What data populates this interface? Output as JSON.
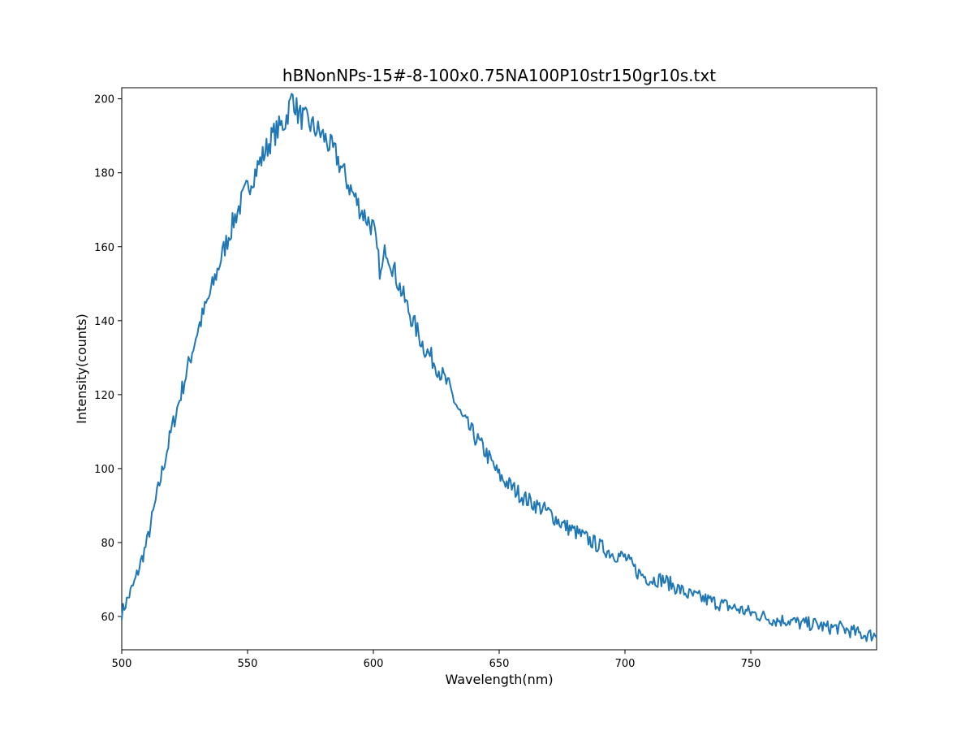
{
  "chart_data": {
    "type": "line",
    "title": "hBNonNPs-15#-8-100x0.75NA100P10str150gr10s.txt",
    "xlabel": "Wavelength(nm)",
    "ylabel": "Intensity(counts)",
    "xlim": [
      500,
      800
    ],
    "ylim": [
      51,
      203
    ],
    "xticks": [
      500,
      550,
      600,
      650,
      700,
      750
    ],
    "yticks": [
      60,
      80,
      100,
      120,
      140,
      160,
      180,
      200
    ],
    "grid": false,
    "line_color": "#1f77b4",
    "series": [
      {
        "x": [
          500,
          505,
          510,
          515,
          520,
          525,
          530,
          535,
          540,
          545,
          550,
          555,
          560,
          565,
          568,
          570,
          575,
          580,
          585,
          590,
          595,
          600,
          603,
          605,
          610,
          615,
          620,
          625,
          630,
          635,
          640,
          645,
          650,
          655,
          660,
          665,
          670,
          675,
          680,
          685,
          690,
          695,
          700,
          705,
          710,
          715,
          720,
          725,
          730,
          735,
          740,
          745,
          750,
          755,
          760,
          765,
          770,
          775,
          780,
          785,
          790,
          795,
          800
        ],
        "values": [
          61,
          69,
          80,
          96,
          111,
          124,
          137,
          147,
          158,
          168,
          176,
          183,
          190,
          194,
          201,
          196,
          193,
          190,
          185,
          177,
          170,
          165,
          152,
          160,
          150,
          141,
          133,
          128,
          122,
          114,
          109,
          104,
          98,
          95,
          92,
          90,
          88,
          85,
          83,
          81,
          79,
          77,
          76,
          72,
          70,
          70,
          68,
          66,
          65,
          64,
          63,
          62,
          61,
          60,
          59,
          59,
          58,
          58,
          57,
          57,
          56,
          55,
          55
        ]
      }
    ]
  }
}
